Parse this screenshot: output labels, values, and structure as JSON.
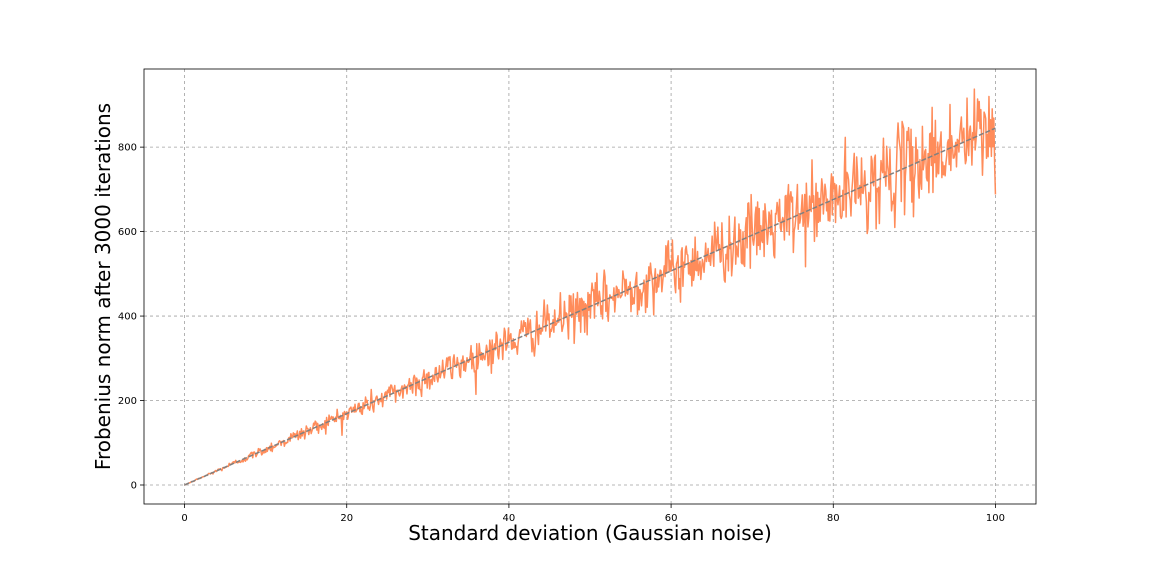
{
  "chart_data": {
    "type": "line",
    "title": "",
    "xlabel": "Standard deviation (Gaussian noise)",
    "ylabel": "Frobenius norm after 3000 iterations",
    "xlim": [
      -5,
      105
    ],
    "ylim": [
      -45,
      985
    ],
    "x_ticks": [
      0,
      20,
      40,
      60,
      80,
      100
    ],
    "y_ticks": [
      0,
      200,
      400,
      600,
      800
    ],
    "grid": true,
    "grid_style": "dashed",
    "legend": "none",
    "series": [
      {
        "style": "noisy-line",
        "color": "#ff8c5a",
        "x_range": [
          0,
          100
        ],
        "samples": 1000,
        "mean_slope": 8.45,
        "noise_std_fraction": 0.07,
        "y_start": 0,
        "y_end": 688
      },
      {
        "style": "trend-line",
        "color": "#808080",
        "x": [
          0,
          100
        ],
        "y": [
          0,
          845
        ]
      }
    ]
  },
  "colors": {
    "noisy_series": "#ff8c5a",
    "trend_line": "#808080",
    "grid": "#a0a0a0",
    "axes": "#000000"
  }
}
